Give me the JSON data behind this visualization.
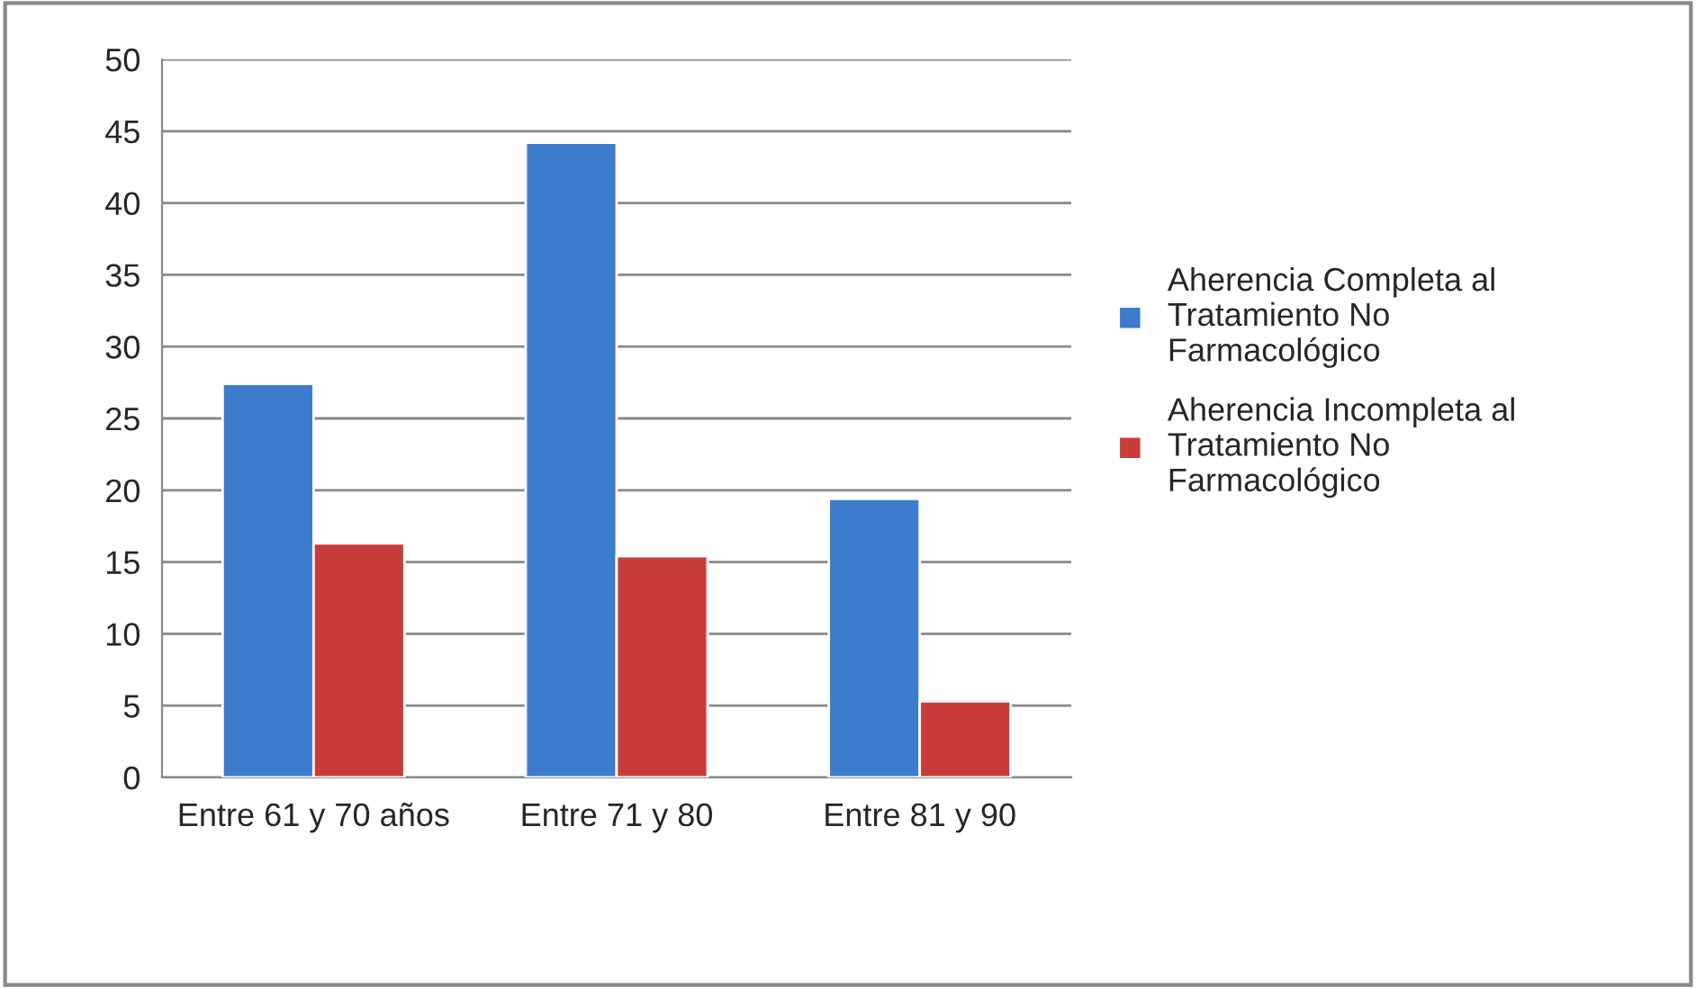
{
  "chart_data": {
    "type": "bar",
    "categories": [
      "Entre 61 y 70 años",
      "Entre 71 y 80",
      "Entre 81 y 90"
    ],
    "series": [
      {
        "name": "Aherencia Completa al Tratamiento No Farmacológico",
        "color": "#3d7bcc",
        "values": [
          27.4,
          44.2,
          19.4
        ]
      },
      {
        "name": "Aherencia Incompleta al Tratamiento No Farmacológico",
        "color": "#c83c3a",
        "values": [
          16.3,
          15.4,
          5.3
        ]
      }
    ],
    "ylim": [
      0,
      50
    ],
    "yticks": [
      0,
      5,
      10,
      15,
      20,
      25,
      30,
      35,
      40,
      45,
      50
    ],
    "grid": "y",
    "legend": "right"
  }
}
